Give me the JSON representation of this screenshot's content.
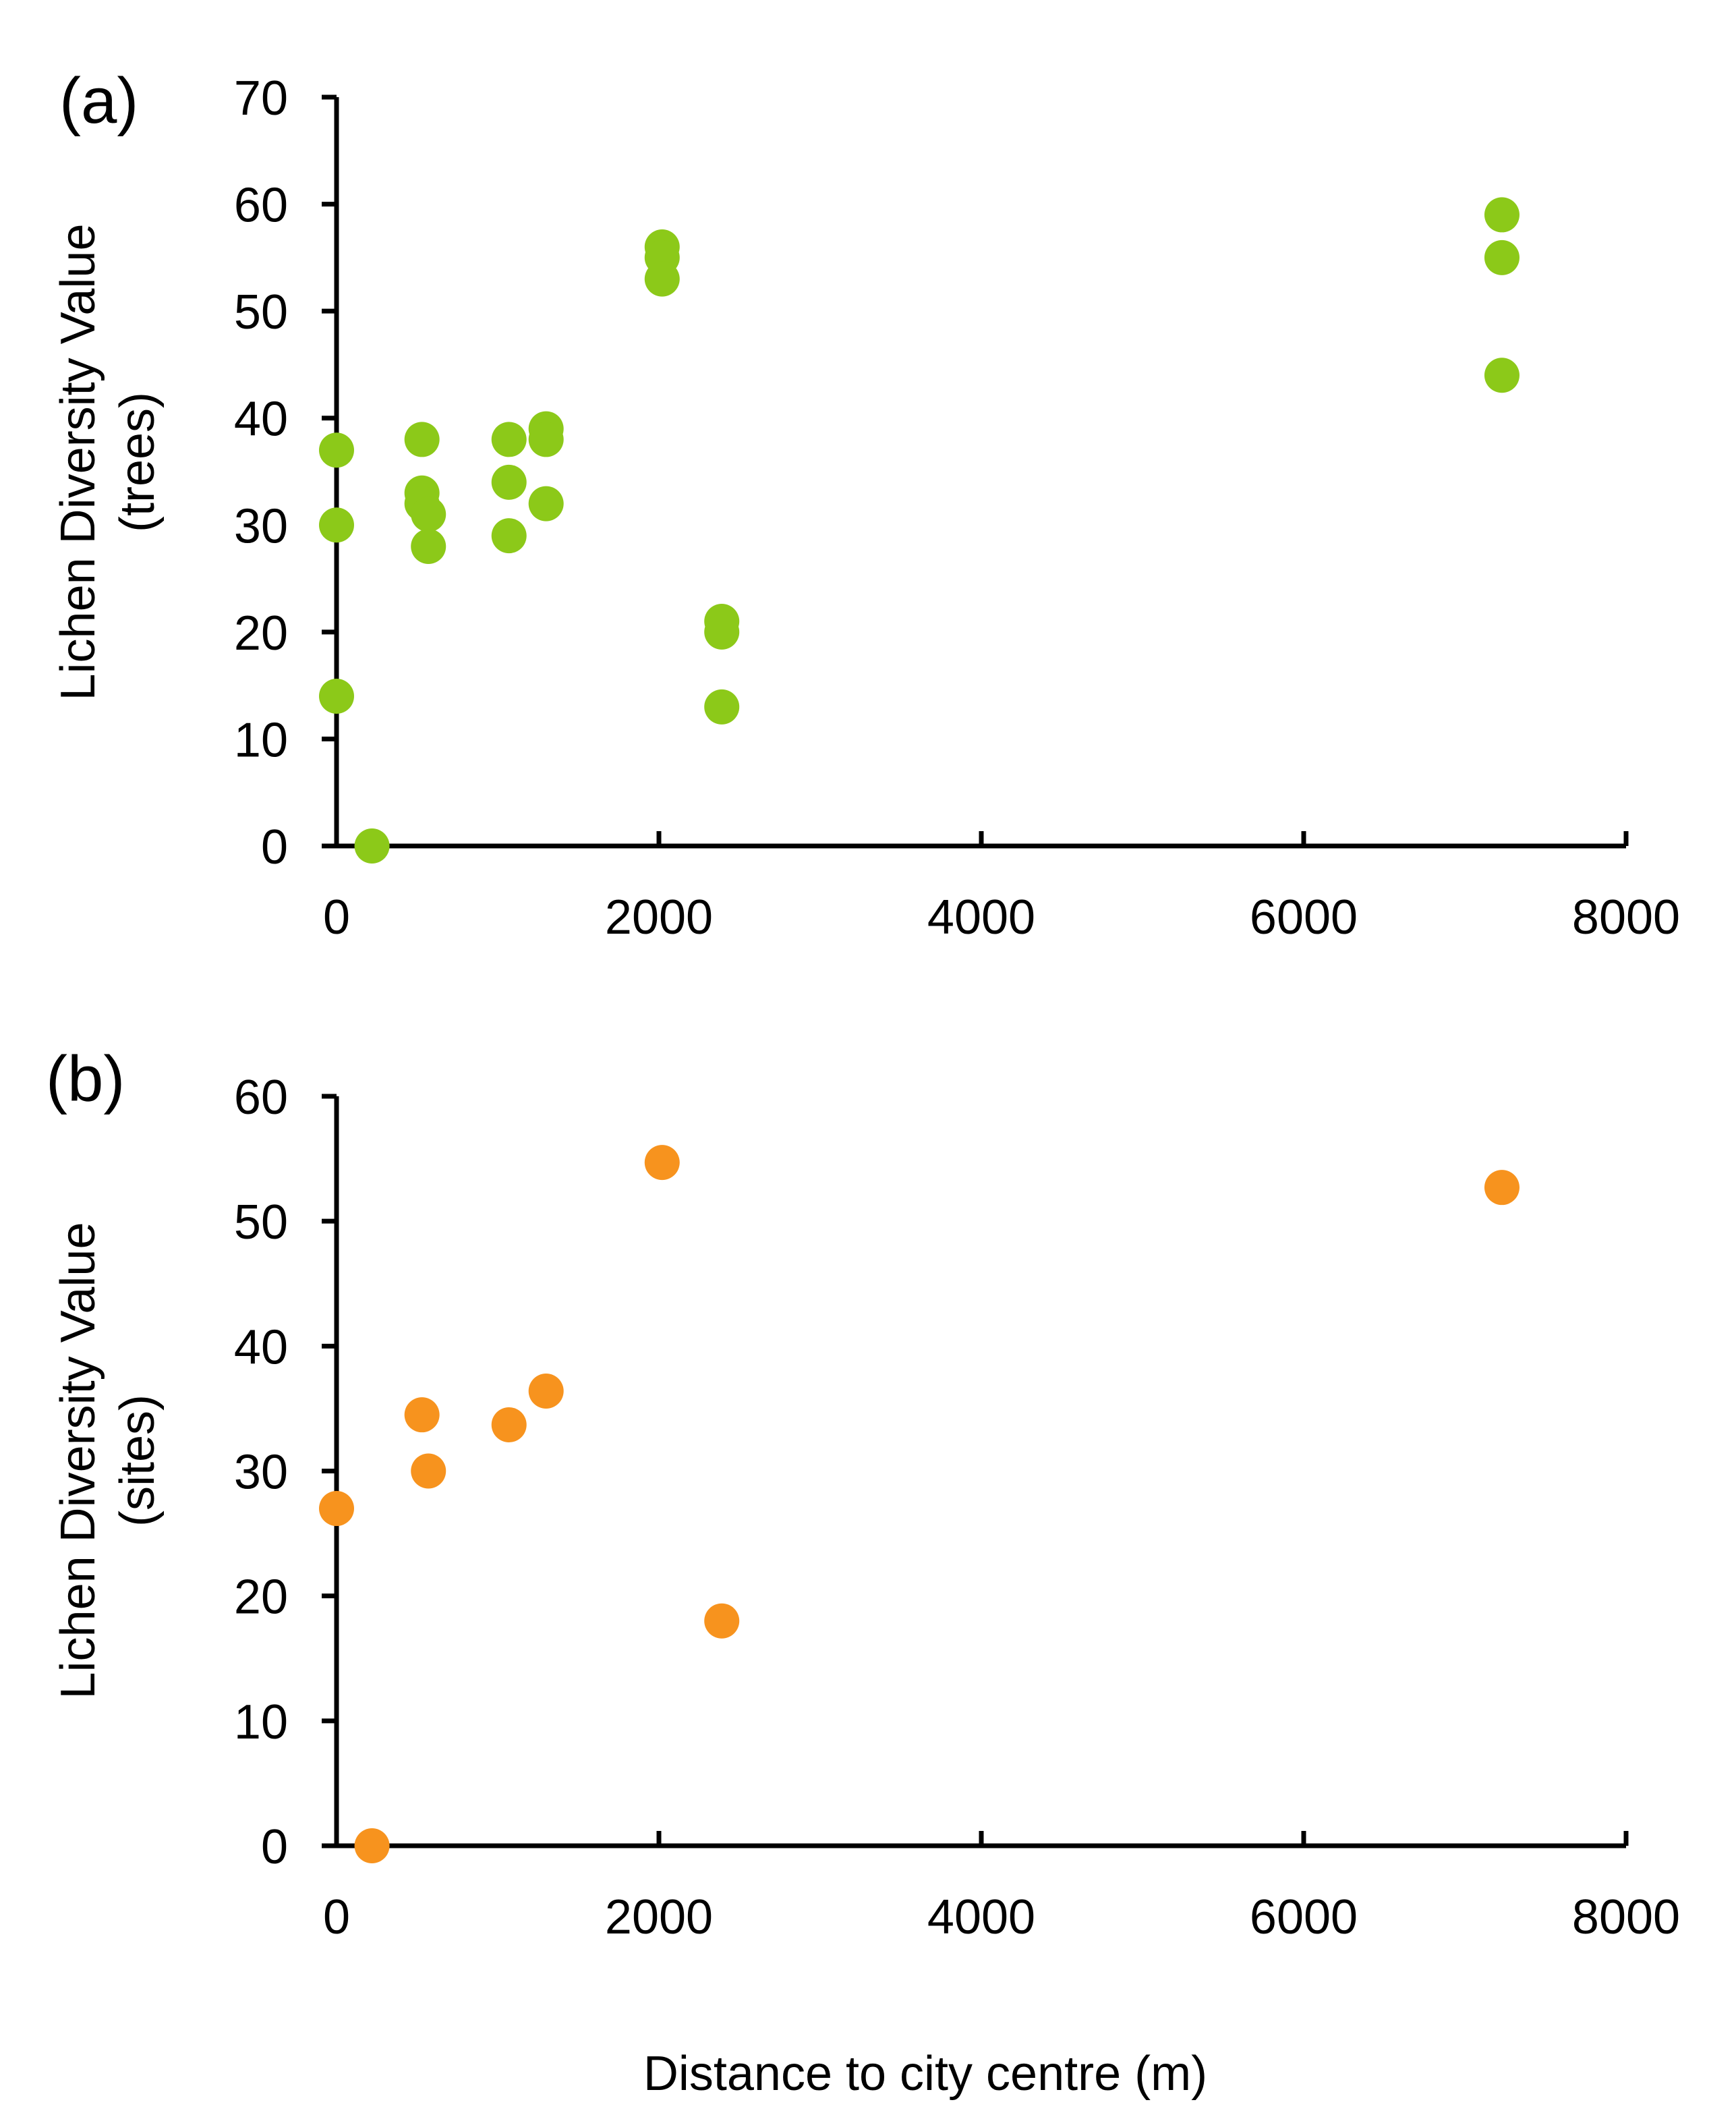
{
  "chart_data": [
    {
      "type": "scatter",
      "panel_label": "(a)",
      "ylabel_line1": "Lichen Diversity Value",
      "ylabel_line2": "(trees)",
      "xlabel": "",
      "xlim": [
        0,
        8000
      ],
      "ylim": [
        0,
        70
      ],
      "x_ticks": [
        0,
        2000,
        4000,
        6000,
        8000
      ],
      "y_ticks": [
        0,
        10,
        20,
        30,
        40,
        50,
        60,
        70
      ],
      "color": "#8cc919",
      "grid": false,
      "points": [
        {
          "x": 0,
          "y": 37
        },
        {
          "x": 0,
          "y": 30
        },
        {
          "x": 0,
          "y": 14
        },
        {
          "x": 220,
          "y": 0
        },
        {
          "x": 530,
          "y": 38
        },
        {
          "x": 530,
          "y": 33
        },
        {
          "x": 530,
          "y": 32
        },
        {
          "x": 570,
          "y": 31
        },
        {
          "x": 570,
          "y": 28
        },
        {
          "x": 1070,
          "y": 38
        },
        {
          "x": 1070,
          "y": 34
        },
        {
          "x": 1070,
          "y": 29
        },
        {
          "x": 1300,
          "y": 39
        },
        {
          "x": 1300,
          "y": 38
        },
        {
          "x": 1300,
          "y": 32
        },
        {
          "x": 2020,
          "y": 56
        },
        {
          "x": 2020,
          "y": 55
        },
        {
          "x": 2020,
          "y": 53
        },
        {
          "x": 2390,
          "y": 21
        },
        {
          "x": 2390,
          "y": 20
        },
        {
          "x": 2390,
          "y": 13
        },
        {
          "x": 7230,
          "y": 59
        },
        {
          "x": 7230,
          "y": 55
        },
        {
          "x": 7230,
          "y": 44
        }
      ]
    },
    {
      "type": "scatter",
      "panel_label": "(b)",
      "ylabel_line1": "Lichen Diversity Value",
      "ylabel_line2": "(sites)",
      "xlabel": "Distance to city centre (m)",
      "xlim": [
        0,
        8000
      ],
      "ylim": [
        0,
        60
      ],
      "x_ticks": [
        0,
        2000,
        4000,
        6000,
        8000
      ],
      "y_ticks": [
        0,
        10,
        20,
        30,
        40,
        50,
        60
      ],
      "color": "#f7931e",
      "grid": false,
      "points": [
        {
          "x": 0,
          "y": 27
        },
        {
          "x": 220,
          "y": 0
        },
        {
          "x": 530,
          "y": 34.5
        },
        {
          "x": 570,
          "y": 30
        },
        {
          "x": 1070,
          "y": 33.7
        },
        {
          "x": 1300,
          "y": 36.4
        },
        {
          "x": 2020,
          "y": 54.7
        },
        {
          "x": 2390,
          "y": 18
        },
        {
          "x": 7230,
          "y": 52.7
        }
      ]
    }
  ]
}
